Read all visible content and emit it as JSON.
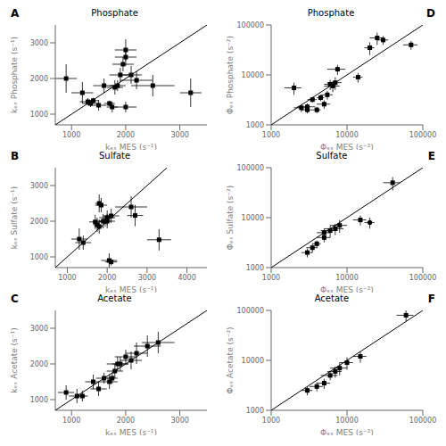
{
  "chart_data": [
    {
      "type": "scatter",
      "title": "Phosphate",
      "annotations": [
        "A"
      ],
      "x_label": "kₑₓ MES (s⁻¹)",
      "y_label": "kₑₓ Phosphate (s⁻¹)",
      "xlim": [
        700,
        3500
      ],
      "ylim": [
        700,
        3500
      ],
      "xticks": [
        1000,
        2000,
        3000
      ],
      "yticks": [
        1000,
        2000,
        3000
      ],
      "grid": false,
      "series": [
        {
          "type": "scatter",
          "marker": "square",
          "color": "#000000",
          "x": [
            900,
            1200,
            1300,
            1350,
            1400,
            1500,
            1600,
            1700,
            1750,
            1800,
            1850,
            1900,
            1950,
            2000,
            2000,
            2000,
            2100,
            2200,
            2500,
            3200
          ],
          "values": [
            2000,
            1600,
            1350,
            1300,
            1380,
            1250,
            1800,
            1300,
            1200,
            1750,
            1800,
            2100,
            2400,
            2800,
            2600,
            1200,
            2100,
            1950,
            1800,
            1600
          ],
          "x_error": [
            200,
            200,
            150,
            150,
            100,
            150,
            200,
            100,
            100,
            150,
            150,
            200,
            200,
            200,
            200,
            200,
            200,
            300,
            400,
            200
          ],
          "y_error": [
            400,
            300,
            100,
            100,
            80,
            150,
            200,
            80,
            150,
            200,
            150,
            200,
            200,
            300,
            250,
            150,
            250,
            250,
            300,
            400
          ]
        },
        {
          "type": "line",
          "line_style": "solid",
          "color": "#000000",
          "x": [
            700,
            3500
          ],
          "values": [
            700,
            3500
          ]
        }
      ]
    },
    {
      "type": "scatter",
      "title": "Sulfate",
      "annotations": [
        "B"
      ],
      "x_label": "kₑₓ MES (s⁻¹)",
      "y_label": "kₑₓ Sulfate (s⁻¹)",
      "xlim": [
        700,
        4500
      ],
      "ylim": [
        700,
        3500
      ],
      "xticks": [
        1000,
        2000,
        3000,
        4000
      ],
      "yticks": [
        1000,
        2000,
        3000
      ],
      "grid": false,
      "series": [
        {
          "type": "scatter",
          "marker": "square",
          "color": "#000000",
          "x": [
            1300,
            1400,
            1700,
            1750,
            1800,
            1800,
            1850,
            1900,
            1950,
            2000,
            2000,
            2100,
            2050,
            2100,
            2600,
            2700,
            3300
          ],
          "values": [
            1500,
            1400,
            1980,
            1900,
            1850,
            2500,
            2450,
            2000,
            2000,
            2000,
            2100,
            2150,
            900,
            860,
            2400,
            2160,
            1480
          ],
          "x_error": [
            200,
            200,
            150,
            100,
            100,
            100,
            150,
            150,
            150,
            200,
            200,
            200,
            200,
            150,
            400,
            200,
            300
          ],
          "y_error": [
            300,
            200,
            200,
            200,
            200,
            250,
            200,
            200,
            150,
            200,
            200,
            200,
            200,
            100,
            300,
            300,
            300
          ]
        },
        {
          "type": "line",
          "line_style": "solid",
          "color": "#000000",
          "x": [
            700,
            3500
          ],
          "values": [
            700,
            3500
          ]
        }
      ]
    },
    {
      "type": "scatter",
      "title": "Acetate",
      "annotations": [
        "C"
      ],
      "x_label": "kₑₓ MES (s⁻¹)",
      "y_label": "kₑₓ Acetate (s⁻¹)",
      "xlim": [
        700,
        3500
      ],
      "ylim": [
        700,
        3500
      ],
      "xticks": [
        1000,
        2000,
        3000
      ],
      "yticks": [
        1000,
        2000,
        3000
      ],
      "grid": false,
      "series": [
        {
          "type": "scatter",
          "marker": "square",
          "color": "#000000",
          "x": [
            900,
            1100,
            1200,
            1400,
            1500,
            1600,
            1700,
            1750,
            1800,
            1850,
            1900,
            2000,
            2100,
            2200,
            2400,
            2600
          ],
          "values": [
            1200,
            1100,
            1100,
            1500,
            1300,
            1600,
            1500,
            1600,
            1800,
            2000,
            2000,
            2200,
            2100,
            2300,
            2500,
            2600
          ],
          "x_error": [
            150,
            150,
            100,
            150,
            150,
            150,
            150,
            100,
            150,
            200,
            150,
            200,
            200,
            200,
            250,
            300
          ],
          "y_error": [
            200,
            200,
            150,
            200,
            200,
            150,
            200,
            150,
            200,
            200,
            200,
            200,
            250,
            300,
            300,
            300
          ]
        },
        {
          "type": "line",
          "line_style": "solid",
          "color": "#000000",
          "x": [
            700,
            3500
          ],
          "values": [
            700,
            3500
          ]
        }
      ]
    },
    {
      "type": "scatter",
      "title": "Phosphate",
      "annotations": [
        "D"
      ],
      "x_label": "Φₑₓ MES (s⁻²)",
      "y_label": "Φₑₓ Phosphate (s⁻²)",
      "log": true,
      "xlim": [
        1000,
        100000
      ],
      "ylim": [
        1000,
        100000
      ],
      "xticks": [
        1000,
        10000,
        100000
      ],
      "yticks": [
        1000,
        10000,
        100000
      ],
      "grid": false,
      "series": [
        {
          "type": "scatter",
          "marker": "square",
          "color": "#000000",
          "x": [
            2000,
            2500,
            3000,
            3000,
            3500,
            4000,
            4500,
            5000,
            5500,
            6000,
            6500,
            7000,
            7500,
            14000,
            20000,
            25000,
            30000,
            70000
          ],
          "values": [
            5500,
            2200,
            2000,
            2300,
            3200,
            2000,
            3500,
            2600,
            4000,
            6500,
            6000,
            7000,
            13000,
            9000,
            35000,
            55000,
            50000,
            40000
          ],
          "x_error": [
            500,
            500,
            500,
            800,
            500,
            500,
            500,
            1000,
            1000,
            1000,
            1500,
            1500,
            2000,
            2000,
            3000,
            5000,
            5000,
            15000
          ],
          "y_error": [
            1500,
            400,
            300,
            400,
            400,
            300,
            500,
            500,
            800,
            1500,
            1500,
            2000,
            3000,
            2000,
            10000,
            15000,
            10000,
            8000
          ]
        },
        {
          "type": "line",
          "line_style": "solid",
          "color": "#000000",
          "x": [
            1000,
            100000
          ],
          "values": [
            1000,
            100000
          ]
        }
      ]
    },
    {
      "type": "scatter",
      "title": "Sulfate",
      "annotations": [
        "E"
      ],
      "x_label": "Φₑₓ MES (s⁻²)",
      "y_label": "Φₑₓ Sulfate (s⁻²)",
      "log": true,
      "xlim": [
        1000,
        100000
      ],
      "ylim": [
        1000,
        100000
      ],
      "xticks": [
        1000,
        10000,
        100000
      ],
      "yticks": [
        1000,
        10000,
        100000
      ],
      "grid": false,
      "series": [
        {
          "type": "scatter",
          "marker": "square",
          "color": "#000000",
          "x": [
            3000,
            3500,
            4000,
            5000,
            5000,
            6000,
            7000,
            8000,
            15000,
            40000
          ],
          "values": [
            2000,
            2500,
            3000,
            4000,
            5000,
            5500,
            6000,
            7000,
            9000,
            50000
          ],
          "x_error": [
            500,
            600,
            500,
            1000,
            1000,
            1500,
            2000,
            2000,
            3000,
            10000
          ],
          "y_error": [
            400,
            500,
            500,
            800,
            1000,
            1500,
            1500,
            2000,
            2000,
            15000
          ]
        },
        {
          "type": "scatter",
          "marker": "dot",
          "color": "#000000",
          "x": [
            20000
          ],
          "values": [
            8000
          ],
          "x_error": [
            3000
          ],
          "y_error": [
            2000
          ]
        },
        {
          "type": "line",
          "line_style": "solid",
          "color": "#000000",
          "x": [
            1000,
            100000
          ],
          "values": [
            1000,
            100000
          ]
        }
      ]
    },
    {
      "type": "scatter",
      "title": "Acetate",
      "annotations": [
        "F"
      ],
      "x_label": "Φₑₓ MES (s⁻²)",
      "y_label": "Φₑₓ Acetate (s⁻²)",
      "log": true,
      "xlim": [
        1000,
        100000
      ],
      "ylim": [
        1000,
        100000
      ],
      "xticks": [
        1000,
        10000,
        100000
      ],
      "yticks": [
        1000,
        10000,
        100000
      ],
      "grid": false,
      "series": [
        {
          "type": "scatter",
          "marker": "square",
          "color": "#000000",
          "x": [
            3000,
            4000,
            5000,
            6000,
            7000,
            8000,
            10000,
            15000,
            60000
          ],
          "values": [
            2500,
            3000,
            3500,
            5000,
            6000,
            7000,
            9000,
            12000,
            80000
          ],
          "x_error": [
            500,
            800,
            1000,
            1500,
            1500,
            2000,
            2000,
            3000,
            15000
          ],
          "y_error": [
            500,
            600,
            800,
            1000,
            1500,
            2000,
            2500,
            3000,
            20000
          ]
        },
        {
          "type": "line",
          "line_style": "solid",
          "color": "#000000",
          "x": [
            1000,
            100000
          ],
          "values": [
            1000,
            100000
          ]
        }
      ]
    }
  ]
}
